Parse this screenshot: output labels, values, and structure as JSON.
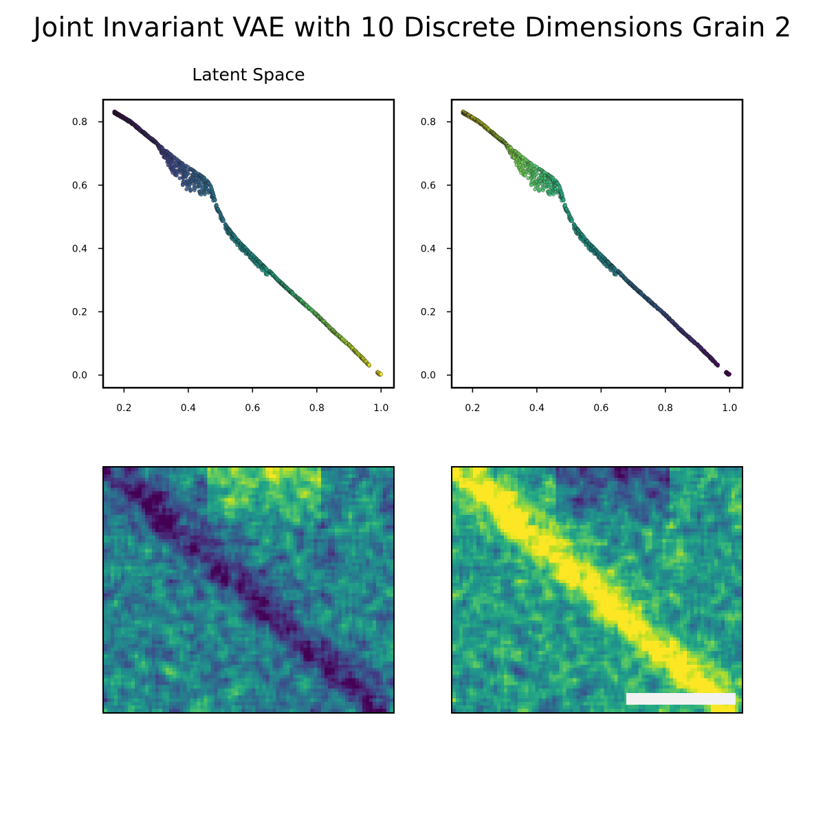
{
  "figure": {
    "title": "Joint Invariant VAE with 10 Discrete Dimensions Grain 2",
    "panel_title": "Latent Space"
  },
  "colors": {
    "colormap": "viridis",
    "scale_bar": "#f2f2f2",
    "frame": "#000000"
  },
  "chart_data": [
    {
      "type": "scatter",
      "name": "latent-space-left",
      "title": "Latent Space",
      "xlabel": "",
      "ylabel": "",
      "xlim": [
        0.135,
        1.04
      ],
      "ylim": [
        -0.04,
        0.87
      ],
      "xticks": [
        0.2,
        0.4,
        0.6,
        0.8,
        1.0
      ],
      "xtick_labels": [
        "0.2",
        "0.4",
        "0.6",
        "0.8",
        "1.0"
      ],
      "yticks": [
        0.0,
        0.2,
        0.4,
        0.6,
        0.8
      ],
      "ytick_labels": [
        "0.0",
        "0.2",
        "0.4",
        "0.6",
        "0.8"
      ],
      "color_by": "x",
      "color_direction": "ascending",
      "curve": [
        [
          0.17,
          0.83
        ],
        [
          0.22,
          0.8
        ],
        [
          0.28,
          0.75
        ],
        [
          0.33,
          0.71
        ],
        [
          0.38,
          0.67
        ],
        [
          0.42,
          0.645
        ],
        [
          0.455,
          0.62
        ],
        [
          0.47,
          0.6
        ],
        [
          0.49,
          0.53
        ],
        [
          0.52,
          0.47
        ],
        [
          0.56,
          0.42
        ],
        [
          0.6,
          0.38
        ],
        [
          0.65,
          0.33
        ],
        [
          0.7,
          0.28
        ],
        [
          0.75,
          0.235
        ],
        [
          0.8,
          0.19
        ],
        [
          0.85,
          0.14
        ],
        [
          0.9,
          0.095
        ],
        [
          0.94,
          0.055
        ],
        [
          0.96,
          0.035
        ],
        [
          0.98,
          0.015
        ],
        [
          1.0,
          0.0
        ]
      ],
      "grid": false,
      "legend": "none"
    },
    {
      "type": "scatter",
      "name": "latent-space-right",
      "title": "",
      "xlabel": "",
      "ylabel": "",
      "xlim": [
        0.135,
        1.04
      ],
      "ylim": [
        -0.04,
        0.87
      ],
      "xticks": [
        0.2,
        0.4,
        0.6,
        0.8,
        1.0
      ],
      "xtick_labels": [
        "0.2",
        "0.4",
        "0.6",
        "0.8",
        "1.0"
      ],
      "yticks": [
        0.0,
        0.2,
        0.4,
        0.6,
        0.8
      ],
      "ytick_labels": [
        "0.0",
        "0.2",
        "0.4",
        "0.6",
        "0.8"
      ],
      "color_by": "x",
      "color_direction": "descending",
      "curve": [
        [
          0.17,
          0.83
        ],
        [
          0.22,
          0.8
        ],
        [
          0.28,
          0.75
        ],
        [
          0.33,
          0.71
        ],
        [
          0.38,
          0.67
        ],
        [
          0.42,
          0.645
        ],
        [
          0.455,
          0.62
        ],
        [
          0.47,
          0.6
        ],
        [
          0.49,
          0.53
        ],
        [
          0.52,
          0.47
        ],
        [
          0.56,
          0.42
        ],
        [
          0.6,
          0.38
        ],
        [
          0.65,
          0.33
        ],
        [
          0.7,
          0.28
        ],
        [
          0.75,
          0.235
        ],
        [
          0.8,
          0.19
        ],
        [
          0.85,
          0.14
        ],
        [
          0.9,
          0.095
        ],
        [
          0.94,
          0.055
        ],
        [
          0.96,
          0.035
        ],
        [
          0.98,
          0.015
        ],
        [
          1.0,
          0.0
        ]
      ],
      "grid": false,
      "legend": "none"
    },
    {
      "type": "heatmap",
      "name": "grain-map-left",
      "colormap": "viridis",
      "dominant_tones": "teal-blue background, dark purple diagonal band from top-left to bottom-right, yellow patches at top center"
    },
    {
      "type": "heatmap",
      "name": "grain-map-right",
      "colormap": "viridis",
      "dominant_tones": "green background, bright yellow-green diagonal band from top-left to bottom-right, dark purple patches at top right",
      "has_scale_bar": true
    }
  ]
}
